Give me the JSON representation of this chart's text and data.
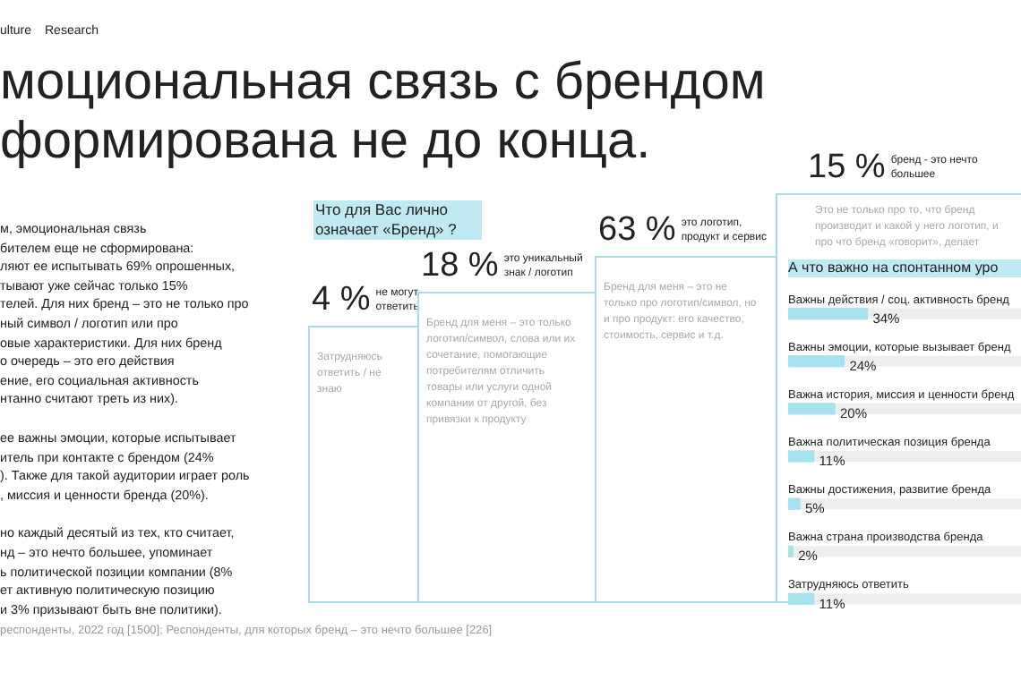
{
  "chart_data": [
    {
      "type": "other",
      "title": "моциональная связь с брендом\nформирована не до конца.",
      "annotations": [
        "ulture",
        "Research",
        "м, эмоциональная связь",
        "бителем еще не сформирована:",
        "ляют ее испытывать 69% опрошенных,",
        "тывают уже сейчас только 15%",
        "телей. Для них бренд – это не только про",
        "ный символ / логотип или про",
        "овые характеристики. Для них бренд",
        "о очередь – это его действия",
        "ение, его социальная активность",
        "нтанно считают треть из них).",
        "ее важны эмоции, которые испытывает",
        "итель при контакте с брендом (24%",
        "). Также для такой аудитории играет роль",
        ", миссия и ценности бренда (20%).",
        "но каждый десятый из тех, кто считает,",
        "нд – это нечто большее, упоминает",
        "ь политической позиции компании (8%",
        "ет активную политическую позицию",
        "и 3% призывают быть вне политики).",
        "респонденты, 2022 год [1500]; Респонденты, для которых бренд – это нечто большее [226]"
      ]
    },
    {
      "type": "other",
      "title": "Что для Вас лично означает «Бренд» ?",
      "categories": [
        "не могут ответить",
        "это уникальный знак / логотип",
        "это логотип, продукт и сервис",
        "бренд - это нечто большее"
      ],
      "values": [
        4,
        18,
        63,
        15
      ],
      "value_labels": [
        "4 %",
        "18 %",
        "63 %",
        "15 %"
      ],
      "annotations": [
        "Затрудняюсь ответить / не знаю",
        "Бренд для меня – это только логотип/символ, слова или их сочетание, помогающие потребителям отличить товары или услуги одной компании от другой, без привязки к продукту",
        "Бренд для меня – это не только про логотип/символ, но и про продукт: его качество, стоимость, сервис и т.д.",
        "Это не только про то, что бренд производит и какой у него логотип, и про что бренд «говорит», делает"
      ]
    },
    {
      "type": "bar",
      "orientation": "horizontal",
      "title": "А что важно на спонтанном уро",
      "categories": [
        "Важны действия / соц. активность бренд",
        "Важны эмоции, которые вызывает бренд",
        "Важна история, миссия и ценности бренд",
        "Важна политическая позиция бренда",
        "Важны достижения, развитие бренда",
        "Важна страна производства бренда",
        "Затрудняюсь ответить"
      ],
      "values": [
        34,
        24,
        20,
        11,
        5,
        2,
        11
      ],
      "value_labels": [
        "34%",
        "24%",
        "20%",
        "11%",
        "5%",
        "2%",
        "11%"
      ],
      "color": "#a6e3ee",
      "xlim": [
        0,
        100
      ],
      "tick_labels": false
    }
  ]
}
